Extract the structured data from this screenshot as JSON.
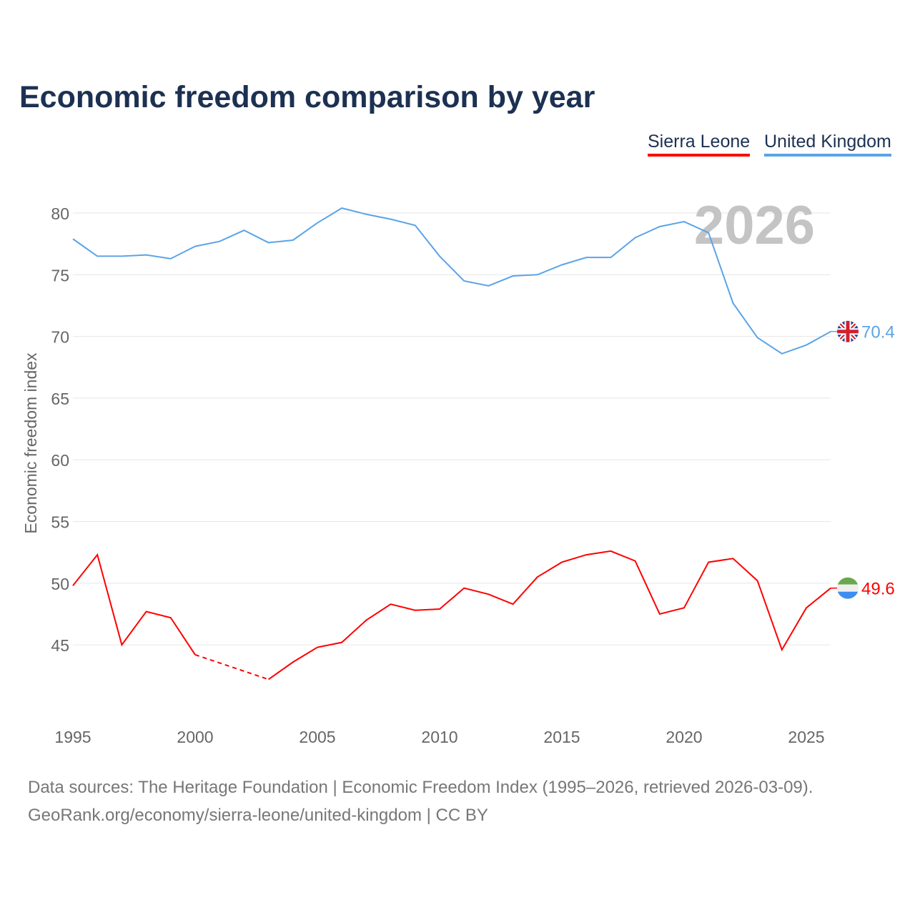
{
  "chart_data": {
    "type": "line",
    "title": "Economic freedom comparison by year",
    "ylabel": "Economic freedom index",
    "xlabel": "",
    "xlim": [
      1995,
      2026
    ],
    "ylim": [
      40,
      82
    ],
    "yticks": [
      45,
      50,
      55,
      60,
      65,
      70,
      75,
      80
    ],
    "xticks": [
      1995,
      2000,
      2005,
      2010,
      2015,
      2020,
      2025
    ],
    "grid": true,
    "watermark_year": "2026",
    "legend_position": "top-right",
    "x": [
      1995,
      1996,
      1997,
      1998,
      1999,
      2000,
      2001,
      2002,
      2003,
      2004,
      2005,
      2006,
      2007,
      2008,
      2009,
      2010,
      2011,
      2012,
      2013,
      2014,
      2015,
      2016,
      2017,
      2018,
      2019,
      2020,
      2021,
      2022,
      2023,
      2024,
      2025,
      2026
    ],
    "series": [
      {
        "name": "Sierra Leone",
        "color": "#ff0000",
        "end_label": "49.6",
        "flag": "sierra-leone-flag",
        "values": [
          49.8,
          52.3,
          45.0,
          47.7,
          47.2,
          44.2,
          null,
          null,
          42.2,
          43.6,
          44.8,
          45.2,
          47.0,
          48.3,
          47.8,
          47.9,
          49.6,
          49.1,
          48.3,
          50.5,
          51.7,
          52.3,
          52.6,
          51.8,
          47.5,
          48.0,
          51.7,
          52.0,
          50.2,
          44.6,
          48.0,
          49.6
        ]
      },
      {
        "name": "United Kingdom",
        "color": "#5ba4e8",
        "end_label": "70.4",
        "flag": "united-kingdom-flag",
        "values": [
          77.9,
          76.5,
          76.5,
          76.6,
          76.3,
          77.3,
          77.7,
          78.6,
          77.6,
          77.8,
          79.2,
          80.4,
          79.9,
          79.5,
          79.0,
          76.5,
          74.5,
          74.1,
          74.9,
          75.0,
          75.8,
          76.4,
          76.4,
          78.0,
          78.9,
          79.3,
          78.4,
          72.7,
          69.9,
          68.6,
          69.3,
          70.4
        ]
      }
    ]
  },
  "footer": {
    "line1": "Data sources: The Heritage Foundation | Economic Freedom Index (1995–2026, retrieved 2026-03-09).",
    "line2": "GeoRank.org/economy/sierra-leone/united-kingdom | CC BY"
  }
}
